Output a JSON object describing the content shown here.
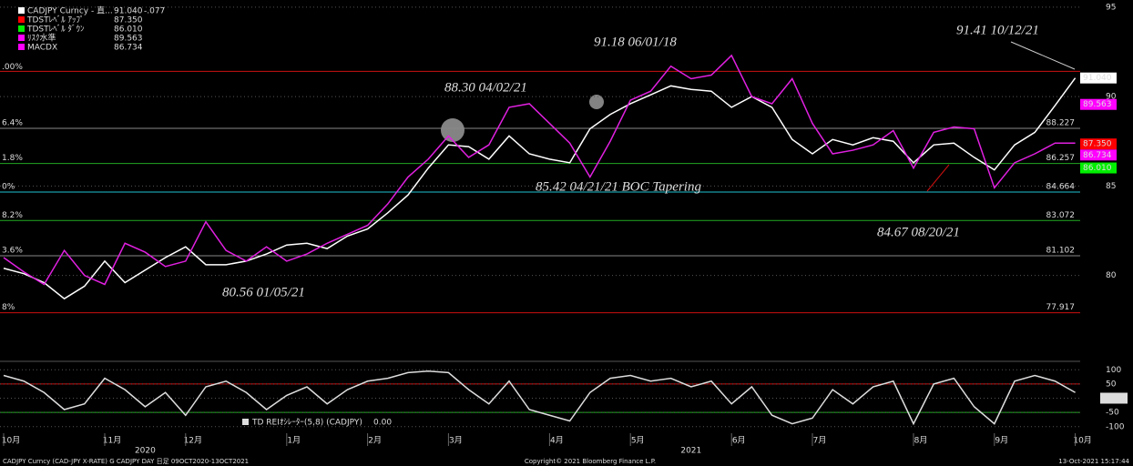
{
  "chart_data": [
    {
      "type": "line",
      "ylim": [
        75.3,
        95.4
      ],
      "yticks": [
        95,
        90,
        85,
        80
      ],
      "grid": true,
      "categories": [
        "10月",
        null,
        null,
        null,
        null,
        "11月",
        null,
        null,
        null,
        "12月",
        null,
        null,
        null,
        null,
        "1月",
        null,
        null,
        null,
        "2月",
        null,
        null,
        null,
        "3月",
        null,
        null,
        null,
        null,
        "4月",
        null,
        null,
        null,
        "5月",
        null,
        null,
        null,
        null,
        "6月",
        null,
        null,
        null,
        "7月",
        null,
        null,
        null,
        null,
        "8月",
        null,
        null,
        null,
        "9月",
        null,
        null,
        null,
        "10月"
      ],
      "years": [
        "2020",
        "2021"
      ],
      "series": [
        {
          "color": "#ffffff",
          "values": [
            80.4,
            80.1,
            79.6,
            78.7,
            79.4,
            80.8,
            79.6,
            80.3,
            81.0,
            81.6,
            80.6,
            80.6,
            80.8,
            81.2,
            81.7,
            81.8,
            81.5,
            82.2,
            82.6,
            83.5,
            84.5,
            86.0,
            87.3,
            87.2,
            86.5,
            87.8,
            86.8,
            86.5,
            86.3,
            88.2,
            89.0,
            89.6,
            90.1,
            90.6,
            90.4,
            90.3,
            89.4,
            90.0,
            89.4,
            87.6,
            86.8,
            87.6,
            87.3,
            87.7,
            87.5,
            86.3,
            87.3,
            87.4,
            86.6,
            85.9,
            87.3,
            88.0,
            89.5,
            91.04
          ]
        },
        {
          "color": "#e020e0",
          "values": [
            81.0,
            80.2,
            79.5,
            81.4,
            80.0,
            79.5,
            81.8,
            81.3,
            80.5,
            80.8,
            83.0,
            81.4,
            80.8,
            81.6,
            80.8,
            81.2,
            81.8,
            82.3,
            82.8,
            84.0,
            85.5,
            86.5,
            87.8,
            86.6,
            87.3,
            89.4,
            89.6,
            88.5,
            87.4,
            85.5,
            87.5,
            89.8,
            90.3,
            91.7,
            91.0,
            91.2,
            92.3,
            90.0,
            89.6,
            91.0,
            88.5,
            86.8,
            87.0,
            87.3,
            88.1,
            86.0,
            88.0,
            88.3,
            88.2,
            84.9,
            86.3,
            86.8,
            87.4,
            87.4
          ]
        }
      ],
      "legend": [
        {
          "name": "CADJPY Curncy - 直...",
          "value": {
            "value": 91.04,
            "label": "91.040"
          },
          "change": {
            "value": -0.077,
            "label": "-.077"
          },
          "color": "#ffffff"
        },
        {
          "name": "TDSTﾚﾍﾞﾙ ｱｯﾌﾟ",
          "value": {
            "value": 87.35,
            "label": "87.350"
          },
          "color": "#ff0000"
        },
        {
          "name": "TDSTﾚﾍﾞﾙ ﾀﾞｳﾝ",
          "value": {
            "value": 86.01,
            "label": "86.010"
          },
          "color": "#00ee00"
        },
        {
          "name": "ﾘｽｸ水準",
          "value": 89.563,
          "color": "#ff00ff"
        },
        {
          "name": "MACDX",
          "value": 86.734,
          "color": "#ff00ff"
        }
      ],
      "top_level": {
        "value": 91.41,
        "pct": ".00%",
        "color": "#cc1010"
      },
      "levels": [
        {
          "value": 88.227,
          "pct": "6.4%",
          "color": "#888888"
        },
        {
          "value": 86.257,
          "pct": "1.8%",
          "color": "#22aa22"
        },
        {
          "value": 84.664,
          "pct": "0%",
          "color": "#20c0d0"
        },
        {
          "value": 83.072,
          "pct": "8.2%",
          "color": "#22aa22"
        },
        {
          "value": 81.102,
          "pct": "3.6%",
          "color": "#888888"
        },
        {
          "value": 77.917,
          "pct": "8%",
          "color": "#cc1010"
        }
      ],
      "annotations": [
        {
          "text": "91.41 10/12/21",
          "color": "#e01010"
        },
        {
          "text": "91.18 06/01/18",
          "color": "#e01010"
        },
        {
          "text": "88.30 04/02/21",
          "color": "#e01010"
        },
        {
          "text": "85.42 04/21/21 BOC Tapering",
          "color": "#ffffff"
        },
        {
          "text": "84.67 08/20/21",
          "color": "#ffffff"
        },
        {
          "text": "80.56 01/05/21",
          "color": "#ffffff"
        }
      ]
    },
    {
      "type": "line",
      "title": "TD REIｵｼﾚｰﾀｰ(5,8) (CADJPY)",
      "last": {
        "value": 0,
        "label": "0.00"
      },
      "ylim": [
        -120,
        120
      ],
      "yticks": [
        100,
        50,
        0,
        -50,
        -100
      ],
      "bands": [
        {
          "value": 50,
          "color": "#cc1010"
        },
        {
          "value": -50,
          "color": "#22aa22"
        }
      ],
      "series": [
        {
          "color": "#dddddd",
          "values": [
            80,
            60,
            20,
            -40,
            -20,
            70,
            30,
            -30,
            20,
            -60,
            40,
            60,
            20,
            -40,
            10,
            40,
            -20,
            30,
            60,
            70,
            90,
            95,
            90,
            30,
            -20,
            60,
            -40,
            -60,
            -80,
            20,
            70,
            80,
            60,
            70,
            40,
            60,
            -20,
            40,
            -60,
            -90,
            -70,
            30,
            -20,
            40,
            60,
            -90,
            50,
            70,
            -30,
            -90,
            60,
            80,
            60,
            20
          ]
        }
      ]
    }
  ],
  "footer": {
    "left": "CADJPY Curncy (CAD-JPY X-RATE) G CADJPY DAY  日足 09OCT2020-13OCT2021",
    "center": "Copyright© 2021 Bloomberg Finance L.P.",
    "right": "13-Oct-2021 15:17:44"
  }
}
